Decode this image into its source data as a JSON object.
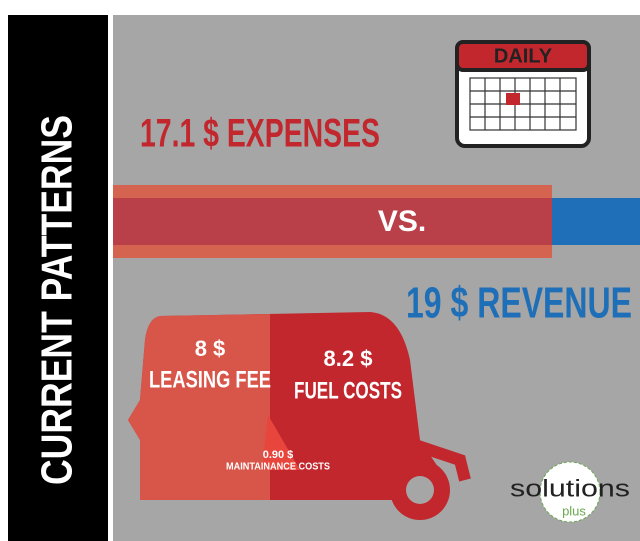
{
  "sidebar": {
    "title": "CURRENT PATTERNS"
  },
  "calendar": {
    "label": "DAILY"
  },
  "expenses": {
    "text": "17.1 $ EXPENSES"
  },
  "versus": {
    "text": "VS."
  },
  "revenue": {
    "text": "19 $ REVENUE"
  },
  "breakdown": {
    "leasing": {
      "amount": "8 $",
      "label": "LEASING FEE"
    },
    "fuel": {
      "amount": "8.2 $",
      "label": "FUEL COSTS"
    },
    "maintenance": {
      "amount": "0.90 $",
      "label": "MAINTAINANCE COSTS"
    }
  },
  "logo": {
    "main": "solutions",
    "sub": "plus"
  }
}
